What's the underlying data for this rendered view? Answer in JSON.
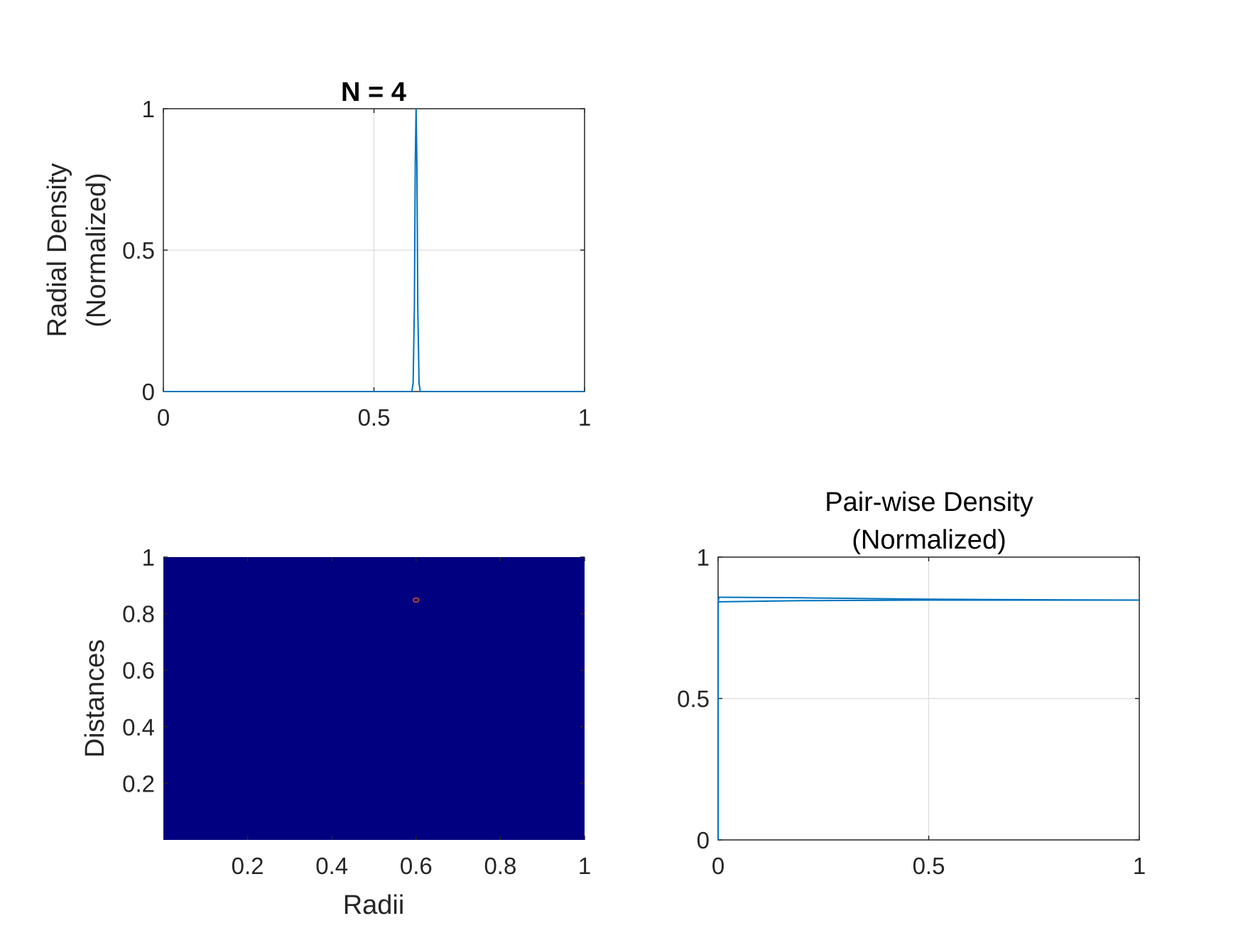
{
  "chart_data": [
    {
      "type": "line",
      "title": "N = 4",
      "xlabel": "",
      "ylabel": [
        "Radial Density",
        "(Normalized)"
      ],
      "xlim": [
        0,
        1
      ],
      "ylim": [
        0,
        1
      ],
      "xticks": [
        "0",
        "0.5",
        "1"
      ],
      "yticks": [
        "0",
        "0.5",
        "1"
      ],
      "grid": true,
      "series": [
        {
          "color": "#0072BD",
          "x": [
            0,
            0.59,
            0.593,
            0.596,
            0.598,
            0.6,
            0.602,
            0.604,
            0.607,
            0.61,
            1
          ],
          "y": [
            0,
            0,
            0.03,
            0.3,
            0.8,
            1.0,
            0.8,
            0.3,
            0.03,
            0,
            0
          ]
        }
      ]
    },
    {
      "type": "heatmap",
      "title": "",
      "xlabel": "Radii",
      "ylabel": "Distances",
      "xlim": [
        0,
        1
      ],
      "ylim": [
        0,
        1
      ],
      "xticks": [
        "0.2",
        "0.4",
        "0.6",
        "0.8",
        "1"
      ],
      "yticks": [
        "0.2",
        "0.4",
        "0.6",
        "0.8",
        "1"
      ],
      "background_color": "#000080",
      "hotspot": {
        "x": 0.6,
        "y": 0.848,
        "color": "#e05020"
      }
    },
    {
      "type": "line",
      "title": [
        "Pair-wise Density",
        "(Normalized)"
      ],
      "xlabel": "",
      "ylabel": "",
      "xlim": [
        0,
        1
      ],
      "ylim": [
        0,
        1
      ],
      "xticks": [
        "0",
        "0.5",
        "1"
      ],
      "yticks": [
        "0",
        "0.5",
        "1"
      ],
      "grid": true,
      "series": [
        {
          "color": "#0072BD",
          "x": [
            0,
            0,
            0.002,
            0.2,
            0.5,
            0.8,
            1
          ],
          "y": [
            0,
            0.84,
            0.858,
            0.856,
            0.851,
            0.849,
            0.848
          ]
        },
        {
          "color": "#0072BD",
          "x": [
            0,
            0.002,
            0.2,
            0.5,
            0.8,
            1
          ],
          "y": [
            0.84,
            0.842,
            0.846,
            0.848,
            0.848,
            0.848
          ]
        }
      ]
    }
  ]
}
